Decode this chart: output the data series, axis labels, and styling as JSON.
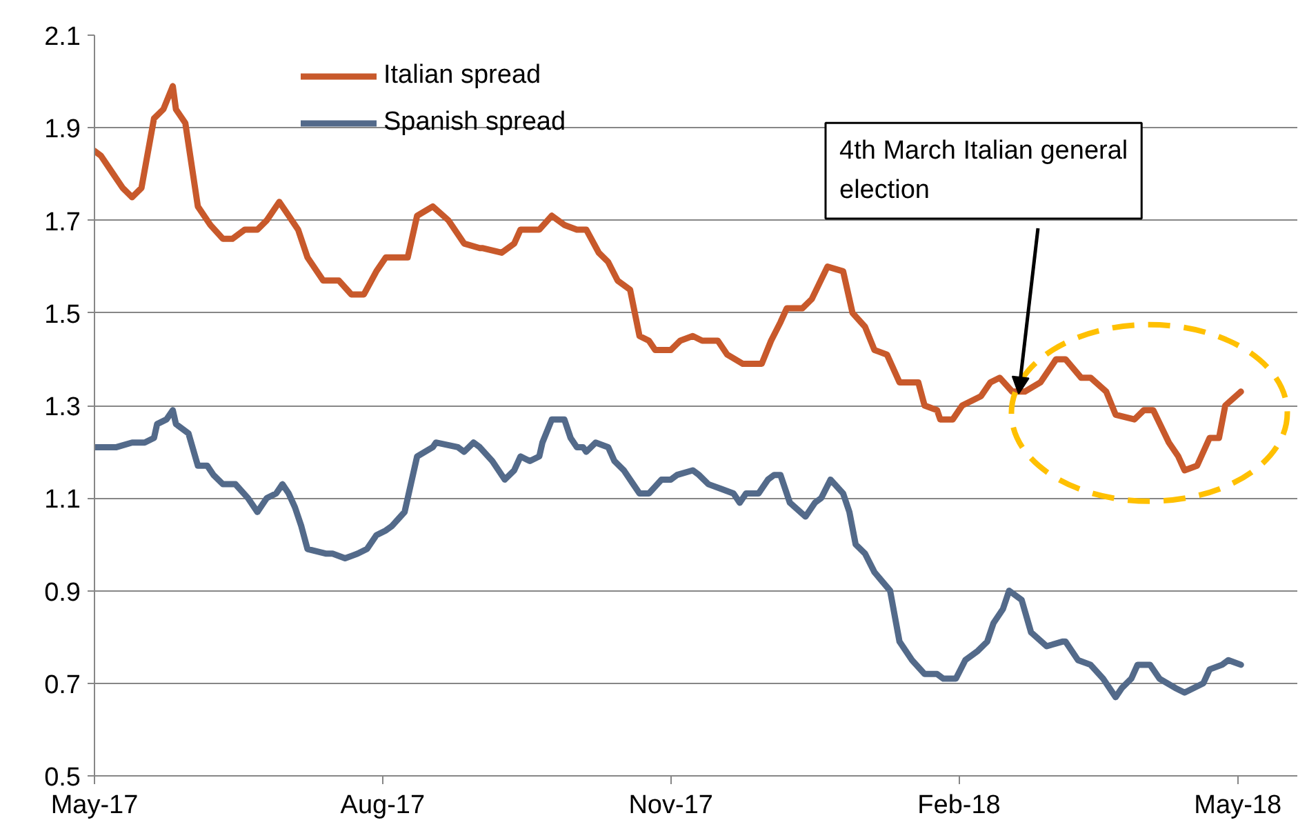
{
  "chart_data": {
    "type": "line",
    "series": [
      {
        "name": "Italian spread",
        "color": "#c8592b",
        "x": [
          "2017-05-01",
          "2017-05-03",
          "2017-05-07",
          "2017-05-10",
          "2017-05-13",
          "2017-05-16",
          "2017-05-20",
          "2017-05-23",
          "2017-05-26",
          "2017-05-27",
          "2017-05-30",
          "2017-06-03",
          "2017-06-07",
          "2017-06-11",
          "2017-06-14",
          "2017-06-18",
          "2017-06-22",
          "2017-06-25",
          "2017-06-29",
          "2017-07-02",
          "2017-07-05",
          "2017-07-08",
          "2017-07-13",
          "2017-07-18",
          "2017-07-22",
          "2017-07-26",
          "2017-07-30",
          "2017-08-02",
          "2017-08-04",
          "2017-08-09",
          "2017-08-12",
          "2017-08-17",
          "2017-08-22",
          "2017-08-27",
          "2017-09-01",
          "2017-09-02",
          "2017-09-08",
          "2017-09-12",
          "2017-09-14",
          "2017-09-20",
          "2017-09-24",
          "2017-09-28",
          "2017-10-02",
          "2017-10-05",
          "2017-10-09",
          "2017-10-12",
          "2017-10-15",
          "2017-10-19",
          "2017-10-22",
          "2017-10-25",
          "2017-10-27",
          "2017-11-01",
          "2017-11-04",
          "2017-11-08",
          "2017-11-11",
          "2017-11-16",
          "2017-11-19",
          "2017-11-24",
          "2017-11-27",
          "2017-11-30",
          "2017-12-03",
          "2017-12-06",
          "2017-12-08",
          "2017-12-13",
          "2017-12-16",
          "2017-12-21",
          "2017-12-26",
          "2017-12-29",
          "2018-01-02",
          "2018-01-05",
          "2018-01-09",
          "2018-01-13",
          "2018-01-19",
          "2018-01-21",
          "2018-01-25",
          "2018-01-26",
          "2018-01-30",
          "2018-02-02",
          "2018-02-08",
          "2018-02-11",
          "2018-02-14",
          "2018-02-18",
          "2018-02-22",
          "2018-02-27",
          "2018-03-04",
          "2018-03-07",
          "2018-03-12",
          "2018-03-15",
          "2018-03-20",
          "2018-03-23",
          "2018-03-29",
          "2018-04-01",
          "2018-04-04",
          "2018-04-09",
          "2018-04-12",
          "2018-04-14",
          "2018-04-18",
          "2018-04-22",
          "2018-04-25",
          "2018-04-27",
          "2018-05-02"
        ],
        "values": [
          1.85,
          1.84,
          1.8,
          1.77,
          1.75,
          1.77,
          1.92,
          1.94,
          1.99,
          1.94,
          1.91,
          1.73,
          1.69,
          1.66,
          1.66,
          1.68,
          1.68,
          1.7,
          1.74,
          1.71,
          1.68,
          1.62,
          1.57,
          1.57,
          1.54,
          1.54,
          1.59,
          1.62,
          1.62,
          1.62,
          1.71,
          1.73,
          1.7,
          1.65,
          1.64,
          1.64,
          1.63,
          1.65,
          1.68,
          1.68,
          1.71,
          1.69,
          1.68,
          1.68,
          1.63,
          1.61,
          1.57,
          1.55,
          1.45,
          1.44,
          1.42,
          1.42,
          1.44,
          1.45,
          1.44,
          1.44,
          1.41,
          1.39,
          1.39,
          1.39,
          1.44,
          1.48,
          1.51,
          1.51,
          1.53,
          1.6,
          1.59,
          1.5,
          1.47,
          1.42,
          1.41,
          1.35,
          1.35,
          1.3,
          1.29,
          1.27,
          1.27,
          1.3,
          1.32,
          1.35,
          1.36,
          1.33,
          1.33,
          1.35,
          1.4,
          1.4,
          1.36,
          1.36,
          1.33,
          1.28,
          1.27,
          1.29,
          1.29,
          1.22,
          1.19,
          1.16,
          1.17,
          1.23,
          1.23,
          1.3,
          1.33
        ]
      },
      {
        "name": "Spanish spread",
        "color": "#536a8a",
        "x": [
          "2017-05-01",
          "2017-05-05",
          "2017-05-08",
          "2017-05-13",
          "2017-05-17",
          "2017-05-20",
          "2017-05-21",
          "2017-05-24",
          "2017-05-26",
          "2017-05-27",
          "2017-05-31",
          "2017-06-03",
          "2017-06-06",
          "2017-06-08",
          "2017-06-11",
          "2017-06-15",
          "2017-06-19",
          "2017-06-22",
          "2017-06-25",
          "2017-06-28",
          "2017-06-30",
          "2017-07-02",
          "2017-07-04",
          "2017-07-06",
          "2017-07-08",
          "2017-07-14",
          "2017-07-16",
          "2017-07-20",
          "2017-07-24",
          "2017-07-27",
          "2017-07-30",
          "2017-08-02",
          "2017-08-04",
          "2017-08-08",
          "2017-08-10",
          "2017-08-12",
          "2017-08-17",
          "2017-08-18",
          "2017-08-25",
          "2017-08-27",
          "2017-08-30",
          "2017-09-01",
          "2017-09-05",
          "2017-09-08",
          "2017-09-09",
          "2017-09-12",
          "2017-09-14",
          "2017-09-17",
          "2017-09-20",
          "2017-09-21",
          "2017-09-24",
          "2017-09-28",
          "2017-09-30",
          "2017-10-02",
          "2017-10-04",
          "2017-10-05",
          "2017-10-08",
          "2017-10-12",
          "2017-10-14",
          "2017-10-17",
          "2017-10-20",
          "2017-10-22",
          "2017-10-25",
          "2017-10-29",
          "2017-11-01",
          "2017-11-03",
          "2017-11-08",
          "2017-11-10",
          "2017-11-13",
          "2017-11-17",
          "2017-11-21",
          "2017-11-23",
          "2017-11-25",
          "2017-11-29",
          "2017-12-02",
          "2017-12-04",
          "2017-12-06",
          "2017-12-09",
          "2017-12-14",
          "2017-12-17",
          "2017-12-19",
          "2017-12-22",
          "2017-12-26",
          "2017-12-28",
          "2017-12-30",
          "2018-01-02",
          "2018-01-05",
          "2018-01-10",
          "2018-01-13",
          "2018-01-17",
          "2018-01-21",
          "2018-01-25",
          "2018-01-27",
          "2018-01-31",
          "2018-02-03",
          "2018-02-07",
          "2018-02-10",
          "2018-02-12",
          "2018-02-15",
          "2018-02-17",
          "2018-02-21",
          "2018-02-24",
          "2018-03-01",
          "2018-03-06",
          "2018-03-07",
          "2018-03-11",
          "2018-03-15",
          "2018-03-19",
          "2018-03-23",
          "2018-03-25",
          "2018-03-28",
          "2018-03-30",
          "2018-04-03",
          "2018-04-06",
          "2018-04-11",
          "2018-04-14",
          "2018-04-17",
          "2018-04-20",
          "2018-04-22",
          "2018-04-26",
          "2018-04-28",
          "2018-05-02"
        ],
        "values": [
          1.21,
          1.21,
          1.21,
          1.22,
          1.22,
          1.23,
          1.26,
          1.27,
          1.29,
          1.26,
          1.24,
          1.17,
          1.17,
          1.15,
          1.13,
          1.13,
          1.1,
          1.07,
          1.1,
          1.11,
          1.13,
          1.11,
          1.08,
          1.04,
          0.99,
          0.98,
          0.98,
          0.97,
          0.98,
          0.99,
          1.02,
          1.03,
          1.04,
          1.07,
          1.13,
          1.19,
          1.21,
          1.22,
          1.21,
          1.2,
          1.22,
          1.21,
          1.18,
          1.15,
          1.14,
          1.16,
          1.19,
          1.18,
          1.19,
          1.22,
          1.27,
          1.27,
          1.23,
          1.21,
          1.21,
          1.2,
          1.22,
          1.21,
          1.18,
          1.16,
          1.13,
          1.11,
          1.11,
          1.14,
          1.14,
          1.15,
          1.16,
          1.15,
          1.13,
          1.12,
          1.11,
          1.09,
          1.11,
          1.11,
          1.14,
          1.15,
          1.15,
          1.09,
          1.06,
          1.09,
          1.1,
          1.14,
          1.11,
          1.07,
          1.0,
          0.98,
          0.94,
          0.9,
          0.79,
          0.75,
          0.72,
          0.72,
          0.71,
          0.71,
          0.75,
          0.77,
          0.79,
          0.83,
          0.86,
          0.9,
          0.88,
          0.81,
          0.78,
          0.79,
          0.79,
          0.75,
          0.74,
          0.71,
          0.67,
          0.69,
          0.71,
          0.74,
          0.74,
          0.71,
          0.69,
          0.68,
          0.69,
          0.7,
          0.73,
          0.74,
          0.75,
          0.74
        ]
      }
    ],
    "xlim": [
      "2017-05-01",
      "2018-05-20"
    ],
    "xticks": [
      {
        "value": "2017-05-01",
        "label": "May-17"
      },
      {
        "value": "2017-08-01",
        "label": "Aug-17"
      },
      {
        "value": "2017-11-01",
        "label": "Nov-17"
      },
      {
        "value": "2018-02-01",
        "label": "Feb-18"
      },
      {
        "value": "2018-05-01",
        "label": "May-18"
      }
    ],
    "ylim": [
      0.5,
      2.1
    ],
    "yticks": [
      0.5,
      0.7,
      0.9,
      1.1,
      1.3,
      1.5,
      1.7,
      1.9,
      2.1
    ],
    "grid": "y",
    "legend": "top",
    "line_style": "solid",
    "annotations": [
      "4th March Italian general\nelection"
    ]
  }
}
